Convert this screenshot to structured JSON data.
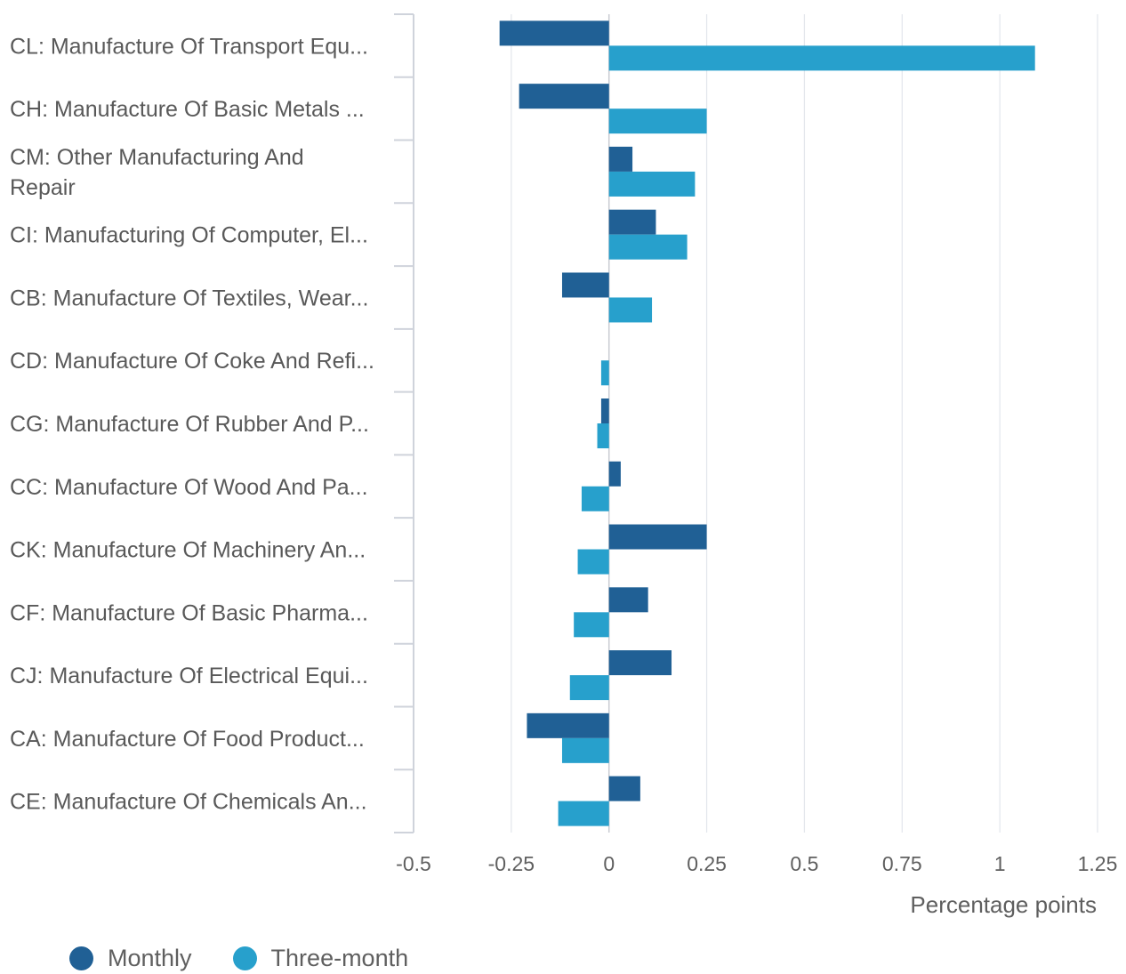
{
  "chart_data": {
    "type": "bar",
    "orientation": "horizontal",
    "categories": [
      "CL: Manufacture Of Transport Equ...",
      "CH: Manufacture Of Basic Metals ...",
      "CM: Other Manufacturing And Repair",
      "CI: Manufacturing Of Computer, El...",
      "CB: Manufacture Of Textiles, Wear...",
      "CD: Manufacture Of Coke And Refi...",
      "CG: Manufacture Of Rubber And P...",
      "CC: Manufacture Of Wood And Pa...",
      "CK: Manufacture Of Machinery An...",
      "CF: Manufacture Of Basic Pharma...",
      "CJ: Manufacture Of Electrical Equi...",
      "CA: Manufacture Of Food Product...",
      "CE: Manufacture Of Chemicals An..."
    ],
    "category_label_lines": [
      [
        "CL: Manufacture Of Transport Equ..."
      ],
      [
        "CH: Manufacture Of Basic Metals ..."
      ],
      [
        "CM: Other Manufacturing And",
        "Repair"
      ],
      [
        "CI: Manufacturing Of Computer, El..."
      ],
      [
        "CB: Manufacture Of Textiles, Wear..."
      ],
      [
        "CD: Manufacture Of Coke And Refi..."
      ],
      [
        "CG: Manufacture Of Rubber And P..."
      ],
      [
        "CC: Manufacture Of Wood And Pa..."
      ],
      [
        "CK: Manufacture Of Machinery An..."
      ],
      [
        "CF: Manufacture Of Basic Pharma..."
      ],
      [
        "CJ: Manufacture Of Electrical Equi..."
      ],
      [
        "CA: Manufacture Of Food Product..."
      ],
      [
        "CE: Manufacture Of Chemicals An..."
      ]
    ],
    "series": [
      {
        "name": "Monthly",
        "color": "#206095",
        "values": [
          -0.28,
          -0.23,
          0.06,
          0.12,
          -0.12,
          null,
          -0.02,
          0.03,
          0.25,
          0.1,
          0.16,
          -0.21,
          0.08
        ]
      },
      {
        "name": "Three-month",
        "color": "#27a0cc",
        "values": [
          1.09,
          0.25,
          0.22,
          0.2,
          0.11,
          -0.02,
          -0.03,
          -0.07,
          -0.08,
          -0.09,
          -0.1,
          -0.12,
          -0.13
        ]
      }
    ],
    "xlabel": "Percentage points",
    "xlim": [
      -0.5,
      1.25
    ],
    "ticks": [
      -0.5,
      -0.25,
      0,
      0.25,
      0.5,
      0.75,
      1,
      1.25
    ],
    "tick_labels": [
      "-0.5",
      "-0.25",
      "0",
      "0.25",
      "0.5",
      "0.75",
      "1",
      "1.25"
    ],
    "grid": true,
    "legend_position": "bottom-left",
    "gridline_color": "#e3e6ec",
    "zero_line_color": "#c9ccd2"
  }
}
